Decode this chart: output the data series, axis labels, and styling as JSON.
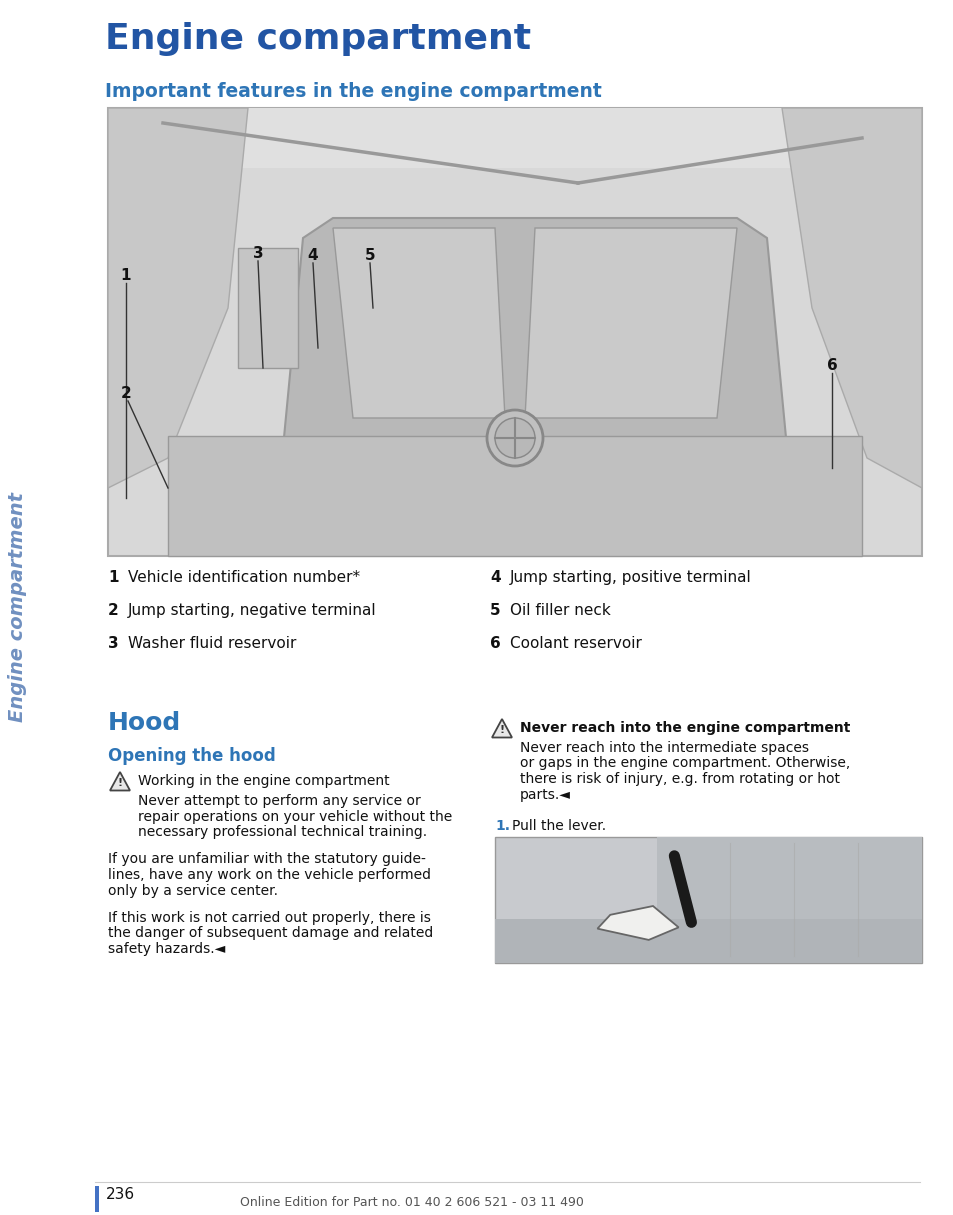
{
  "page_title": "Engine compartment",
  "section_title": "Important features in the engine compartment",
  "sidebar_text": "Engine compartment",
  "sidebar_color": "#7090c0",
  "title_color": "#2255a4",
  "heading_color": "#2e75b6",
  "subheading_color": "#2e75b6",
  "bg_color": "#ffffff",
  "blue_bar_color": "#4472c4",
  "items_left": [
    {
      "num": "1",
      "text": "Vehicle identification number*"
    },
    {
      "num": "2",
      "text": "Jump starting, negative terminal"
    },
    {
      "num": "3",
      "text": "Washer fluid reservoir"
    }
  ],
  "items_right": [
    {
      "num": "4",
      "text": "Jump starting, positive terminal"
    },
    {
      "num": "5",
      "text": "Oil filler neck"
    },
    {
      "num": "6",
      "text": "Coolant reservoir"
    }
  ],
  "hood_title": "Hood",
  "hood_subtitle": "Opening the hood",
  "warning_left_title": "Working in the engine compartment",
  "warning_left_body_lines": [
    "Never attempt to perform any service or",
    "repair operations on your vehicle without the",
    "necessary professional technical training."
  ],
  "para1_lines": [
    "If you are unfamiliar with the statutory guide-",
    "lines, have any work on the vehicle performed",
    "only by a service center."
  ],
  "para2_lines": [
    "If this work is not carried out properly, there is",
    "the danger of subsequent damage and related",
    "safety hazards.◄"
  ],
  "warning_right_title": "Never reach into the engine compartment",
  "warning_right_body_lines": [
    "Never reach into the intermediate spaces",
    "or gaps in the engine compartment. Otherwise,",
    "there is risk of injury, e.g. from rotating or hot",
    "parts.◄"
  ],
  "step1_label": "1.",
  "step1_text": "Pull the lever.",
  "page_num": "236",
  "footer": "Online Edition for Part no. 01 40 2 606 521 - 03 11 490"
}
